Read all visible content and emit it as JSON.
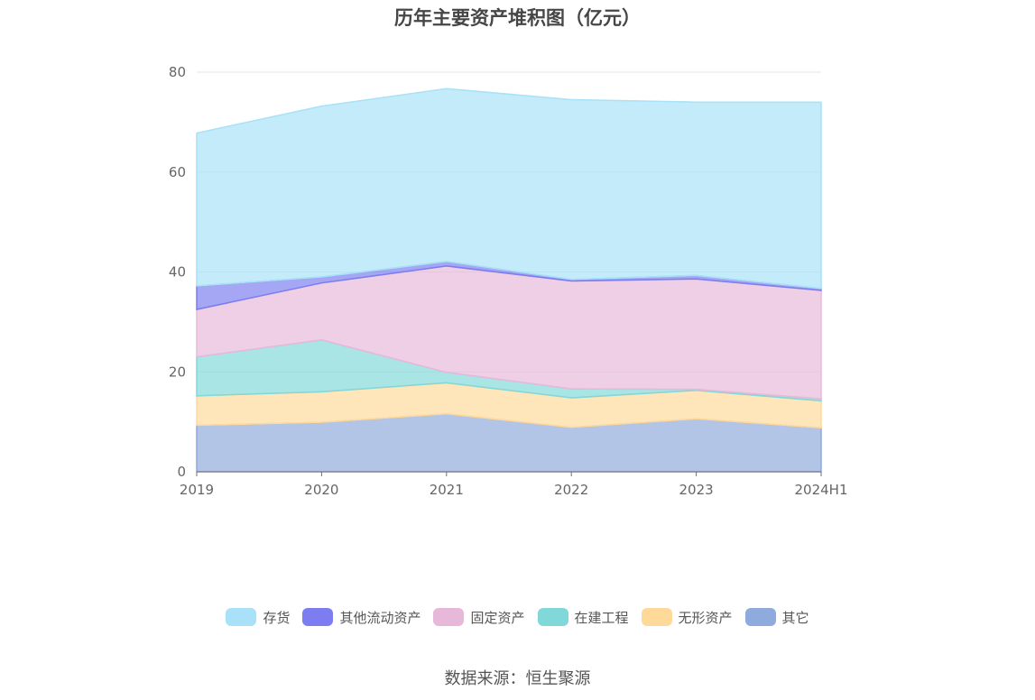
{
  "chart_data": {
    "type": "area",
    "stacked": true,
    "title": "历年主要资产堆积图（亿元）",
    "categories": [
      "2019",
      "2020",
      "2021",
      "2022",
      "2023",
      "2024H1"
    ],
    "y_ticks": [
      "0",
      "20",
      "40",
      "60",
      "80"
    ],
    "ylim": [
      0,
      80
    ],
    "grid": true,
    "legend_position": "bottom",
    "series": [
      {
        "name": "其它",
        "color": "#8faadc",
        "values": [
          9.3,
          9.9,
          11.6,
          8.9,
          10.6,
          8.8
        ]
      },
      {
        "name": "无形资产",
        "color": "#ffd99a",
        "values": [
          5.9,
          6.1,
          6.2,
          5.9,
          5.7,
          5.4
        ]
      },
      {
        "name": "在建工程",
        "color": "#80d8d8",
        "values": [
          7.8,
          10.4,
          2.1,
          1.8,
          0.2,
          0.4
        ]
      },
      {
        "name": "固定资产",
        "color": "#e8b8da",
        "values": [
          9.5,
          11.4,
          21.3,
          21.6,
          22.1,
          21.7
        ]
      },
      {
        "name": "其他流动资产",
        "color": "#7b7df0",
        "values": [
          4.7,
          1.2,
          0.9,
          0.3,
          0.7,
          0.4
        ]
      },
      {
        "name": "存货",
        "color": "#a8e1f8",
        "values": [
          30.6,
          34.2,
          34.6,
          36.0,
          34.7,
          37.3
        ]
      }
    ],
    "legend_order": [
      "存货",
      "其他流动资产",
      "固定资产",
      "在建工程",
      "无形资产",
      "其它"
    ]
  },
  "source": "数据来源：恒生聚源"
}
